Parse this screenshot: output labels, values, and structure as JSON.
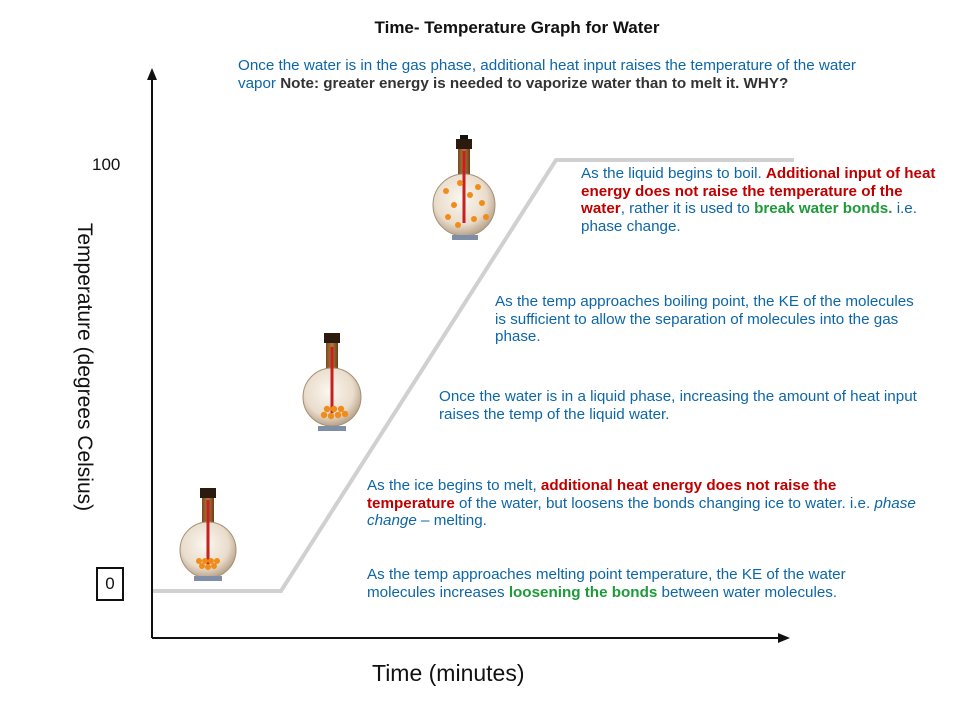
{
  "title": "Time- Temperature Graph for Water",
  "axes": {
    "y_label": "Temperature (degrees Celsius)",
    "x_label": "Time (minutes)",
    "y_tick_top": "100",
    "y_tick_bottom": "0"
  },
  "notes": {
    "gas_phase": {
      "part1": "Once the water is in the gas phase, additional heat input raises the temperature of the water vapor ",
      "part2": "Note: greater energy is needed to vaporize water than to melt it. WHY?"
    },
    "boiling": {
      "part1": "As the liquid begins to boil. ",
      "part2": "Additional input of heat energy does not raise the temperature of the water",
      "part3": ", rather it is used to ",
      "part4": "break water bonds.",
      "part5": " i.e. phase change."
    },
    "approach_boiling": {
      "text": "As the temp approaches boiling point, the KE of the molecules is sufficient to allow the separation of molecules into the gas phase."
    },
    "liquid_phase": {
      "text": "Once the water is in a liquid phase, increasing the amount of heat input raises the temp of the liquid water."
    },
    "melting": {
      "part1": "As the ice begins to melt, ",
      "part2": "additional heat energy does not raise the temperature",
      "part3": " of the water, but loosens the bonds changing ice to water. i.e. ",
      "part4": "phase change",
      "part5": " – melting."
    },
    "approach_melting": {
      "part1": "As the temp approaches melting point temperature, the KE of the water molecules increases ",
      "part2": "loosening the bonds",
      "part3": " between water molecules."
    }
  },
  "colors": {
    "note_blue": "#0d66a8",
    "emphasis_red": "#c00000",
    "emphasis_green": "#1e9a3a",
    "curve_gray": "#d0d0d0"
  },
  "icons": [
    "flask-solid-icon",
    "flask-liquid-icon",
    "flask-boiling-icon"
  ]
}
